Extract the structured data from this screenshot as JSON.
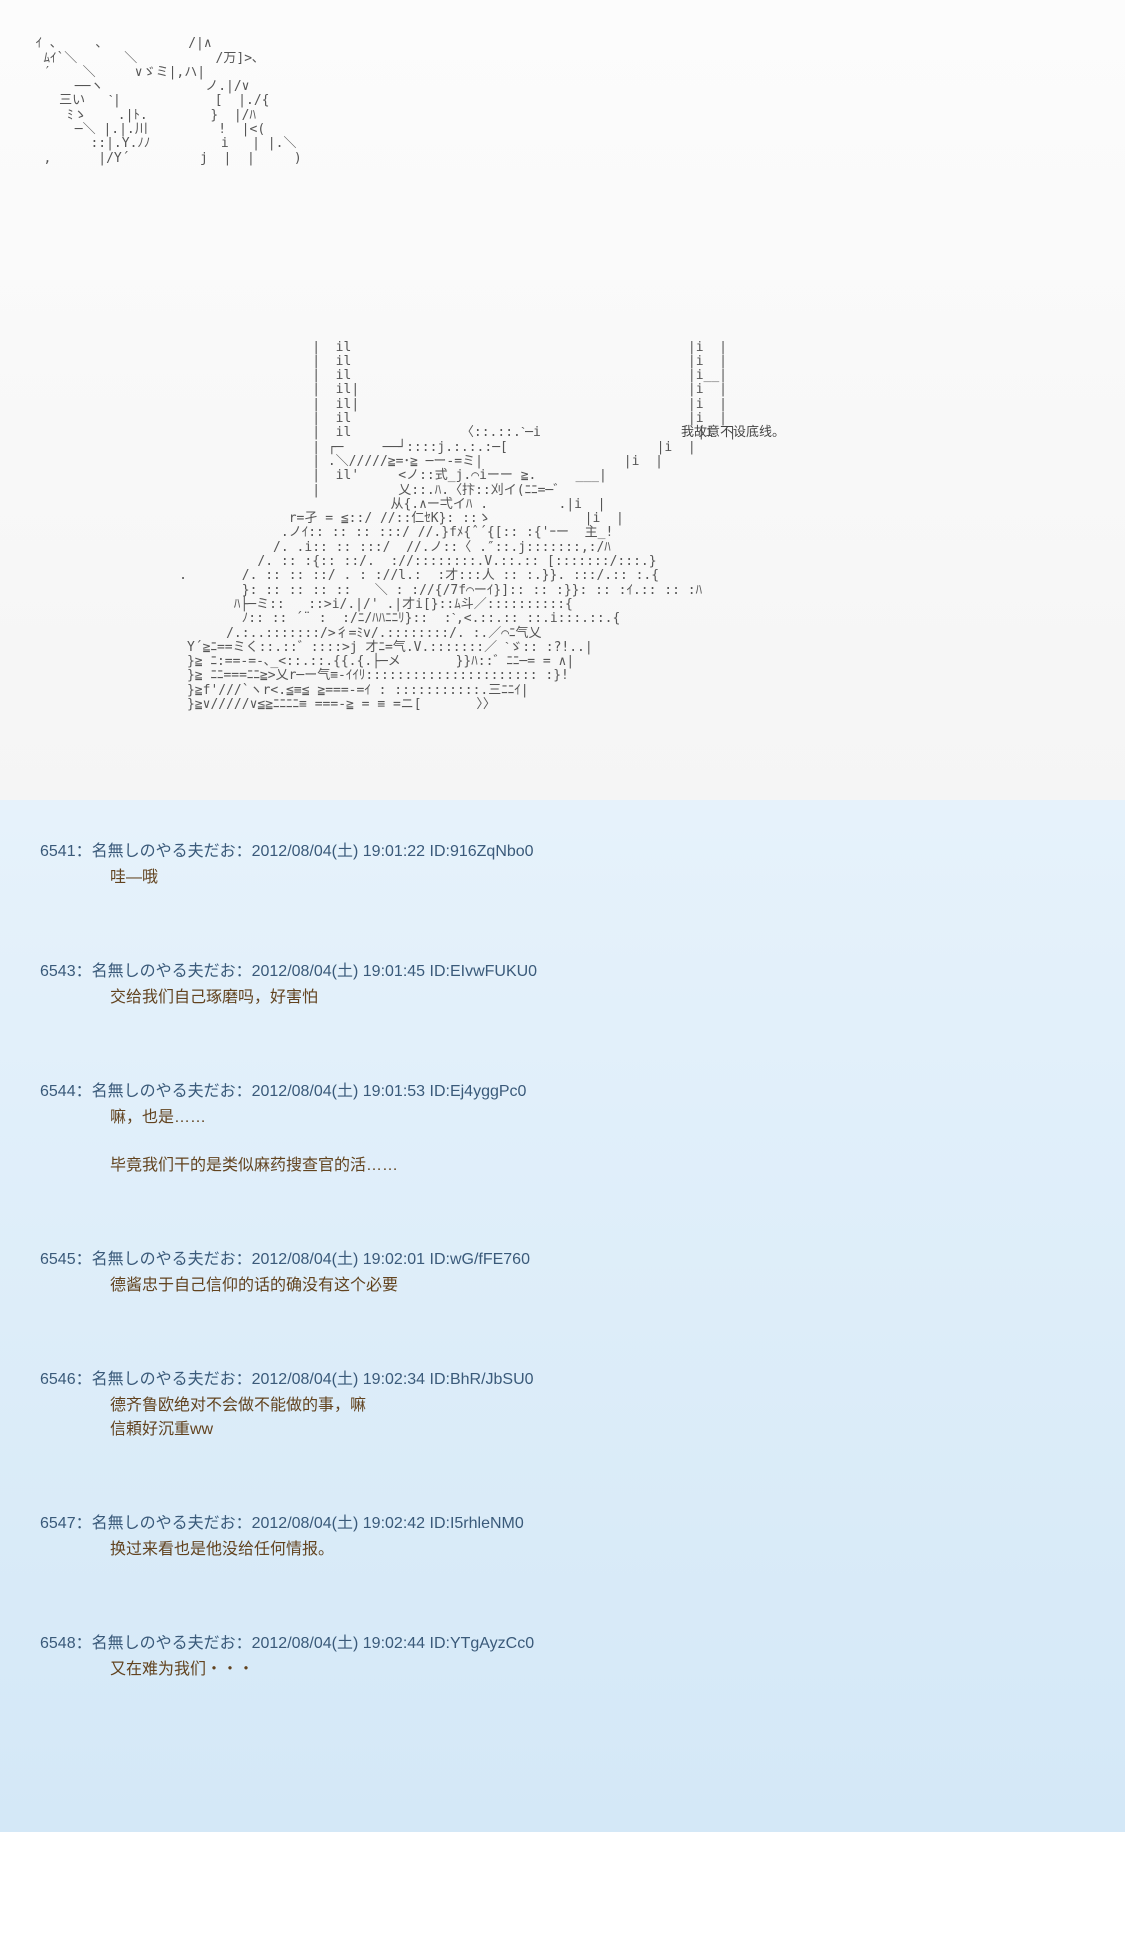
{
  "ascii": {
    "art1_lines": [
      "ｲ ､     ､           /|∧",
      " ﾑｲ`＼      ＼          /万]>､",
      " ′    ＼     ∨ゞミ|,ハ|",
      "     ──ヽ             ノ.|/∨",
      "   三い   ˋ|            [  |./{",
      "    ﾐゝ    .|ﾄ.        }  |/ﾊ",
      "     ─＼ |.|.川         !  |<(",
      "       ::|.Y.ﾉﾉ         i   | |.＼",
      " ,      |/Y´         j  |  |     )"
    ],
    "art2_lines": [
      "                    |  il                                           |i  |",
      "                    |  il                                           |i  |",
      "                    |  il                                           |i__|",
      "                    |  il|                                          |i  |",
      "                    |  il|                                          |i  |",
      "                    |  il                                           |i  |",
      "                    |  il              〈::.::.ˋ─i                    |i  |",
      "                    | ┌─     ──┘::::j.:.:.:─[                   |i  |",
      "                    | .＼/////≧=･≧ ─ー-=ミ|                  |i  |",
      "                    |  il'     <ノ::式_j.⌒iーー ≧.     ___|",
      "                    |          乂::.ﾊ.〈抃::刈イ(ﾆﾆ=─゛",
      "                              从{.∧ー弌イﾊ .         .|i  |",
      "                 r=孑 = ≦::/ //::仁ｾK}: ::ゝ            |i  |",
      "                .ノｲ:: :: :: :::/ //.}fﾒ{ˆ´{[:: :{'ｰー  主_!",
      "               /. .i:: :: :::/  //.ノ::〈 .″::.j:::::::,:/ﾊ",
      "             /. :: :{:: ::/.  ://::::::::.V.::.:: [:::::::/:::.}",
      "   .       /. :: :: ::/ . : ://l.:  :才:::人 :: :.}}. :::/.:: :.{",
      "           }: :: :: :: ::   ＼ : ://{/7f⌒ーｲ}]:: :: :}}: :: :ｲ.:: :: :ﾊ",
      "          ﾊ├─ミ::   ::>i/.|/' .|才i[}::ﾑ斗／::::::::::{",
      "           ﾉ:: :: ´¨ :  :/ﾆ/ﾊﾊﾆﾆﾘ}::  :ˋ,<.::.:: ::.i:::.::.{",
      "         /.:..:::::::/>彳=ﾐv/.::::::::/. :.／⌒ﾆ气乂",
      "    Y´≧ﾆ==ミく::.::゛::::>j 才ﾆ=气.V.:::::::／ ˋゞ:: :?!..|",
      "    }≧ ﾆ:==-=-､_<::.::.{{.{.├─メ       }}ﾊ::゛ﾆﾆ─= = ∧|",
      "    }≧ ﾆﾆ===ﾆﾆ≧>乂r─ー气≡-ｲｲﾘ:::::::::::::::::::::: :}!",
      "    }≧f'///`ヽr<.≦≡≦ ≧===-=ｲ : :::::::::::.三ﾆﾆｲ|",
      "    }≧∨/////∨≦≧ﾆﾆﾆﾆ≡ ===-≧ = ≡ =ニ[       〉〉"
    ],
    "caption": "我故意不设底线。"
  },
  "comments": [
    {
      "num": "6541",
      "author": "名無しのやる夫だお",
      "date": "2012/08/04(土) 19:01:22",
      "id": "916ZqNbo0",
      "body": "哇—哦"
    },
    {
      "num": "6543",
      "author": "名無しのやる夫だお",
      "date": "2012/08/04(土) 19:01:45",
      "id": "EIvwFUKU0",
      "body": "交给我们自己琢磨吗，好害怕"
    },
    {
      "num": "6544",
      "author": "名無しのやる夫だお",
      "date": "2012/08/04(土) 19:01:53",
      "id": "Ej4yggPc0",
      "body": "嘛，也是……\n\n毕竟我们干的是类似麻药搜查官的活……"
    },
    {
      "num": "6545",
      "author": "名無しのやる夫だお",
      "date": "2012/08/04(土) 19:02:01",
      "id": "wG/fFE760",
      "body": "德酱忠于自己信仰的话的确没有这个必要"
    },
    {
      "num": "6546",
      "author": "名無しのやる夫だお",
      "date": "2012/08/04(土) 19:02:34",
      "id": "BhR/JbSU0",
      "body": "德齐鲁欧绝对不会做不能做的事，嘛\n信頼好沉重ww"
    },
    {
      "num": "6547",
      "author": "名無しのやる夫だお",
      "date": "2012/08/04(土) 19:02:42",
      "id": "I5rhleNM0",
      "body": "换过来看也是他没给任何情报。"
    },
    {
      "num": "6548",
      "author": "名無しのやる夫だお",
      "date": "2012/08/04(土) 19:02:44",
      "id": "YTgAyzCc0",
      "body": "又在难为我们・・・"
    }
  ]
}
